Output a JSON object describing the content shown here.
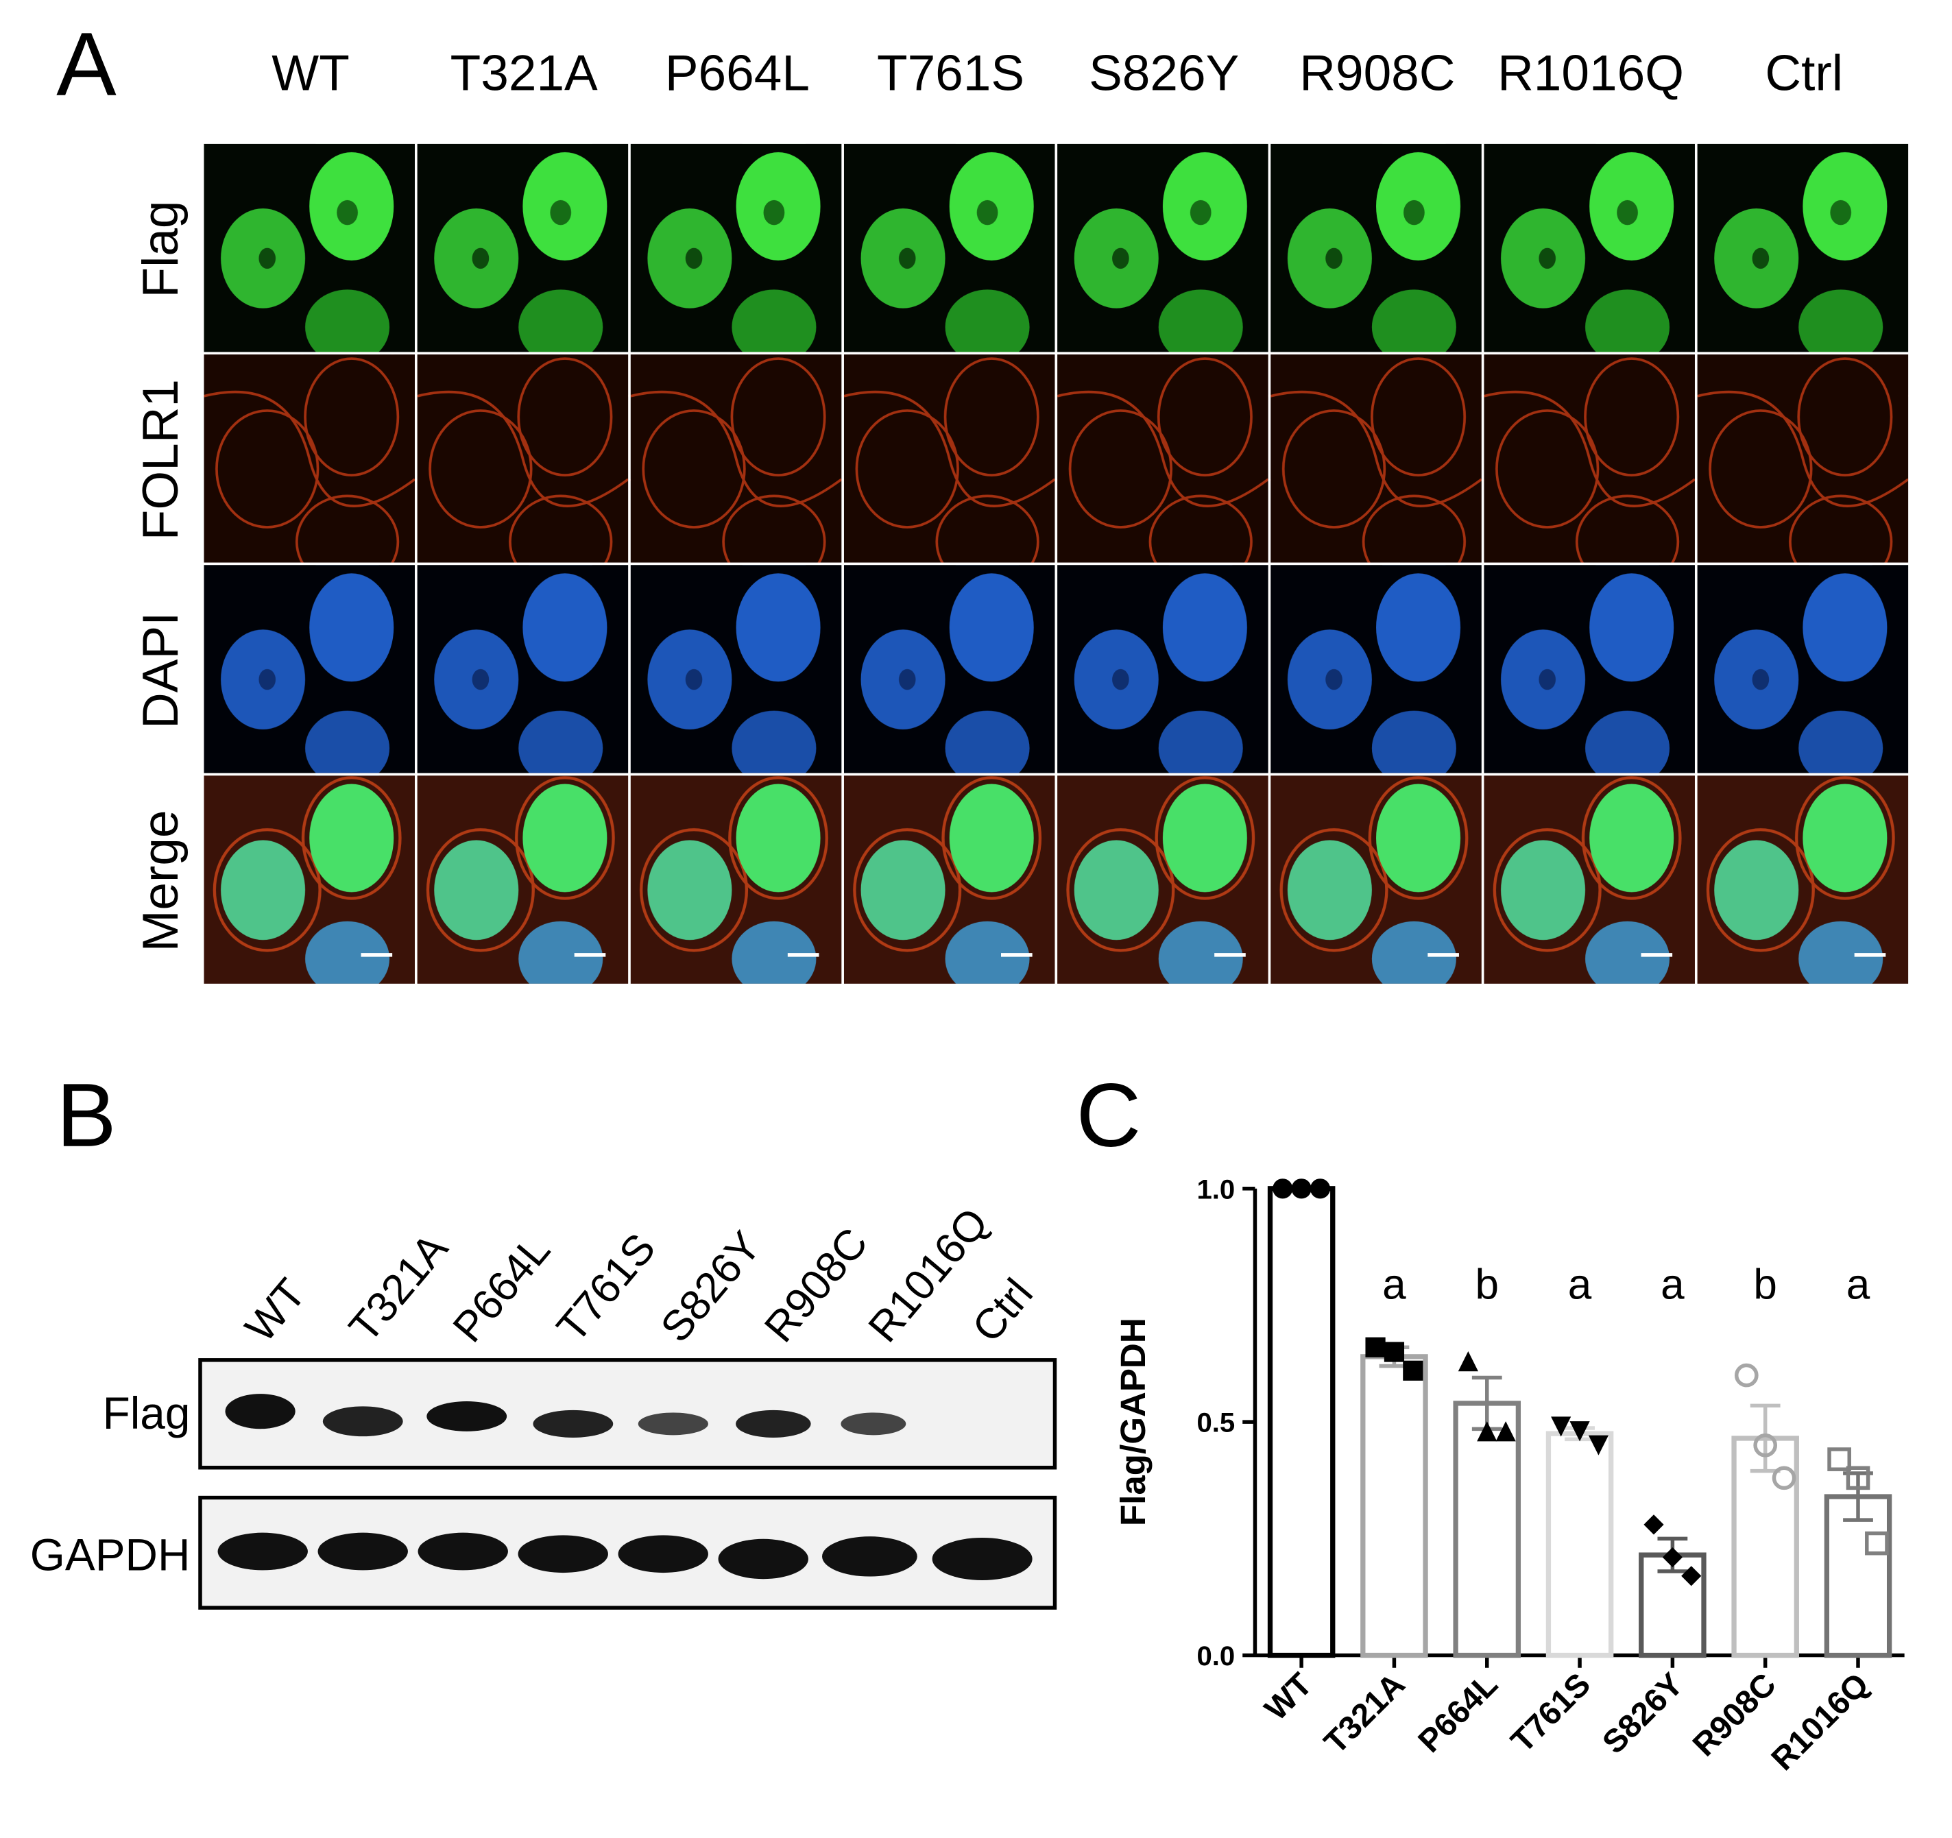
{
  "panel_labels": [
    "A",
    "B",
    "C"
  ],
  "panel_a": {
    "columns": [
      "WT",
      "T321A",
      "P664L",
      "T761S",
      "S826Y",
      "R908C",
      "R1016Q",
      "Ctrl"
    ],
    "rows": [
      "Flag",
      "FOLR1",
      "DAPI",
      "Merge"
    ]
  },
  "panel_b": {
    "lanes": [
      "WT",
      "T321A",
      "P664L",
      "T761S",
      "S826Y",
      "R908C",
      "R1016Q",
      "Ctrl"
    ],
    "rows": [
      "Flag",
      "GAPDH"
    ]
  },
  "chart_data": {
    "type": "bar",
    "y_label": "Flag/GAPDH",
    "categories": [
      "WT",
      "T321A",
      "P664L",
      "T761S",
      "S826Y",
      "R908C",
      "R1016Q"
    ],
    "values": [
      1.0,
      0.64,
      0.54,
      0.475,
      0.215,
      0.465,
      0.34
    ],
    "errors": [
      null,
      0.02,
      0.055,
      0.012,
      0.035,
      0.07,
      0.05
    ],
    "points": [
      [
        1.0,
        1.0,
        1.0
      ],
      [
        0.66,
        0.65,
        0.61
      ],
      [
        0.63,
        0.48,
        0.48
      ],
      [
        0.49,
        0.48,
        0.45
      ],
      [
        0.28,
        0.21,
        0.17
      ],
      [
        0.6,
        0.45,
        0.38
      ],
      [
        0.42,
        0.38,
        0.24
      ]
    ],
    "colors": [
      "#000000",
      "#a6a6a6",
      "#808080",
      "#d9d9d9",
      "#595959",
      "#bfbfbf",
      "#737373"
    ],
    "markers": [
      "circle",
      "square",
      "triangle",
      "triangle-down",
      "diamond",
      "open-circle",
      "open-square"
    ],
    "point_colors": [
      "#000000",
      "#000000",
      "#000000",
      "#000000",
      "#000000",
      "#a6a6a6",
      "#808080"
    ],
    "significance": [
      null,
      "a",
      "b",
      "a",
      "a",
      "b",
      "a"
    ],
    "ylim": [
      0,
      1.0
    ],
    "yticks": [
      {
        "value": 0,
        "label": "0.0"
      },
      0.5,
      {
        "value": 1.0,
        "label": "1.0"
      }
    ]
  }
}
